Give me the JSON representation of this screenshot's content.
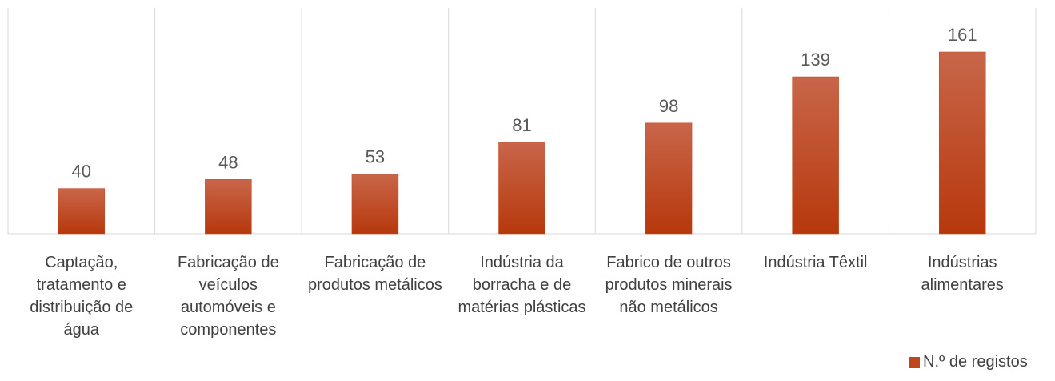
{
  "chart_data": {
    "type": "bar",
    "categories": [
      "Captação, tratamento e distribuição de água",
      "Fabricação de veículos automóveis e componentes",
      "Fabricação de produtos metálicos",
      "Indústria da borracha e de matérias plásticas",
      "Fabrico de outros produtos minerais não metálicos",
      "Indústria Têxtil",
      "Indústrias alimentares"
    ],
    "series": [
      {
        "name": "N.º de registos",
        "color": "#c0461b",
        "values": [
          40,
          48,
          53,
          81,
          98,
          139,
          161
        ]
      }
    ],
    "ylim": [
      0,
      200
    ],
    "legend": "bottom-right"
  }
}
